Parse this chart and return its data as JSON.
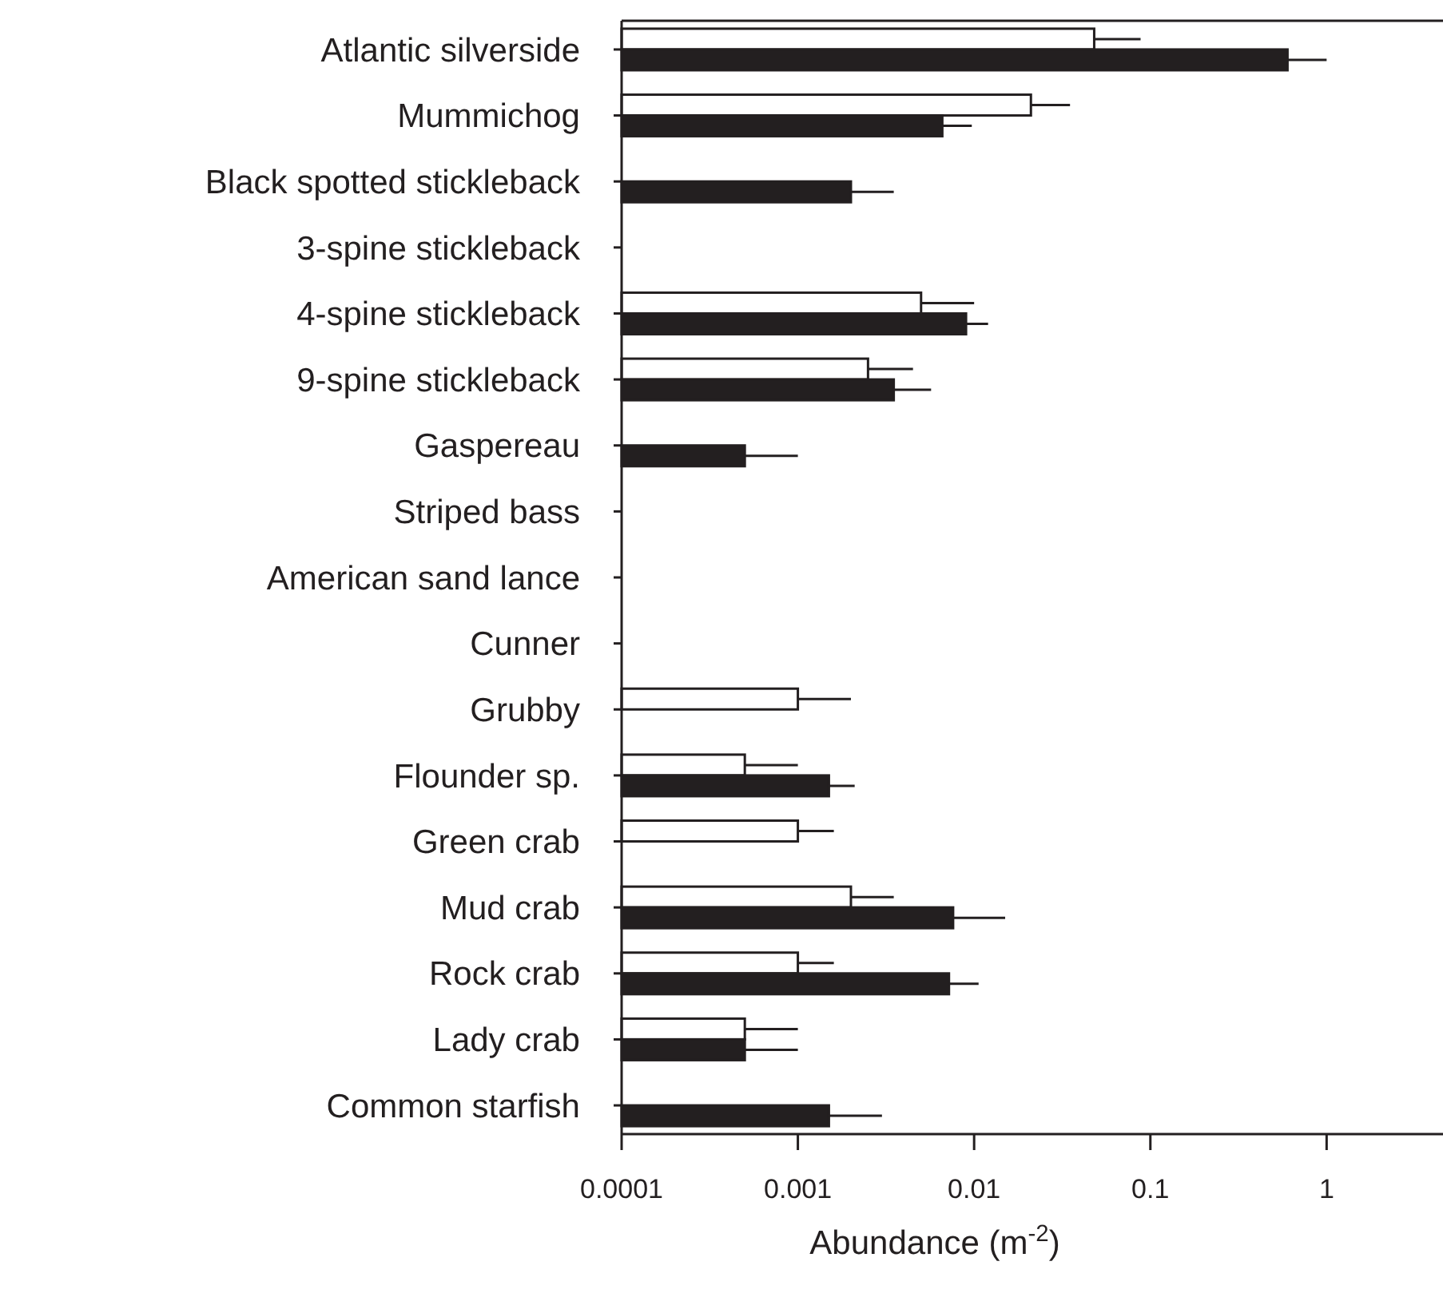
{
  "chart_data": {
    "type": "bar",
    "orientation": "horizontal",
    "xlabel": "Abundance (m$^{-2}$)",
    "log": "x",
    "xlim": [
      0.0001,
      6
    ],
    "xticks": [
      0.0001,
      0.001,
      0.01,
      0.1,
      1
    ],
    "grid": false,
    "categories": [
      "Atlantic silverside",
      "Mummichog",
      "Black spotted stickleback",
      "3-spine stickleback",
      "4-spine stickleback",
      "9-spine stickleback",
      "Gaspereau",
      "Striped bass",
      "American sand lance",
      "Cunner",
      "Grubby",
      "Flounder sp.",
      "Green crab",
      "Mud crab",
      "Rock crab",
      "Lady crab",
      "Common starfish"
    ],
    "series": [
      {
        "color": "#ffffff",
        "values": [
          0.048,
          0.021,
          null,
          null,
          0.005,
          0.0025,
          null,
          null,
          null,
          null,
          0.001,
          0.0005,
          0.001,
          0.002,
          0.001,
          0.0005,
          null
        ],
        "errors": [
          [
            0.048,
            0.088
          ],
          [
            0.021,
            0.035
          ],
          null,
          null,
          [
            0.005,
            0.01
          ],
          [
            0.0025,
            0.0045
          ],
          null,
          null,
          null,
          null,
          [
            0.001,
            0.002
          ],
          [
            0.0005,
            0.001
          ],
          [
            0.001,
            0.0016
          ],
          [
            0.002,
            0.0035
          ],
          [
            0.001,
            0.0016
          ],
          [
            0.0005,
            0.001
          ],
          null
        ]
      },
      {
        "color": "#231f20",
        "values": [
          0.6,
          0.0066,
          0.002,
          null,
          0.009,
          0.0035,
          0.0005,
          null,
          null,
          null,
          null,
          0.0015,
          null,
          0.0076,
          0.0072,
          0.0005,
          0.0015
        ],
        "errors": [
          [
            0.6,
            1
          ],
          [
            0.0066,
            0.0097
          ],
          [
            0.002,
            0.0035
          ],
          null,
          [
            0.009,
            0.012
          ],
          [
            0.0035,
            0.0057
          ],
          [
            0.0005,
            0.001
          ],
          null,
          null,
          null,
          null,
          [
            0.0015,
            0.0021
          ],
          null,
          [
            0.0076,
            0.015
          ],
          [
            0.0072,
            0.0106
          ],
          [
            0.0005,
            0.001
          ],
          [
            0.0015,
            0.003
          ]
        ]
      }
    ]
  }
}
